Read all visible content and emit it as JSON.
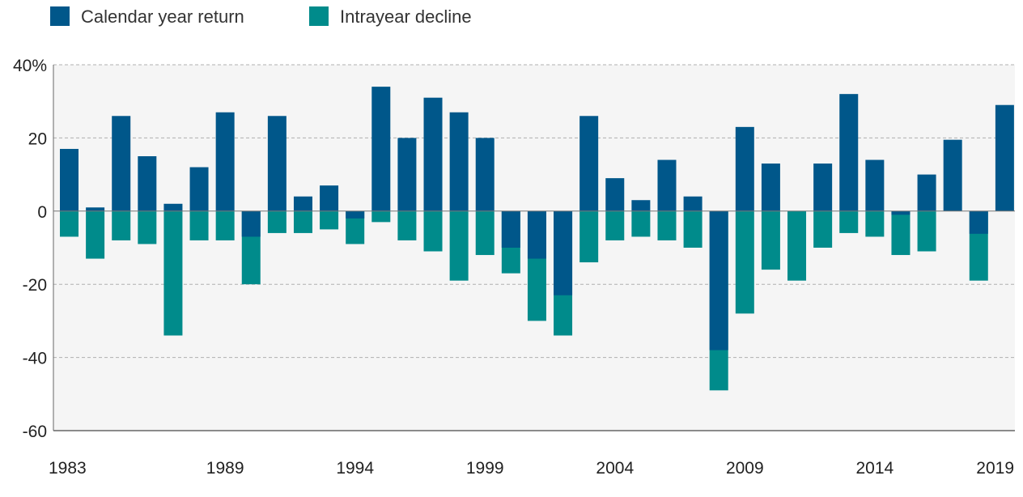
{
  "chart_data": {
    "type": "bar",
    "title": "",
    "xlabel": "",
    "ylabel": "",
    "ylim": [
      -60,
      40
    ],
    "y_ticks": [
      40,
      20,
      0,
      -20,
      -40,
      -60
    ],
    "y_tick_labels": [
      "40%",
      "20",
      "0",
      "-20",
      "-40",
      "-60"
    ],
    "x_tick_labels": [
      "1983",
      "1989",
      "1994",
      "1999",
      "2004",
      "2009",
      "2014",
      "2019"
    ],
    "legend_placement": "top-left",
    "grid": true,
    "years": [
      1983,
      1984,
      1985,
      1986,
      1987,
      1988,
      1989,
      1990,
      1991,
      1992,
      1993,
      1994,
      1995,
      1996,
      1997,
      1998,
      1999,
      2000,
      2001,
      2002,
      2003,
      2004,
      2005,
      2006,
      2007,
      2008,
      2009,
      2010,
      2011,
      2012,
      2013,
      2014,
      2015,
      2016,
      2017,
      2018,
      2019
    ],
    "series": [
      {
        "name": "Calendar year return",
        "color": "#00578a",
        "values": [
          17,
          1,
          26,
          15,
          2,
          12,
          27,
          -7,
          26,
          4,
          7,
          -2,
          34,
          20,
          31,
          27,
          20,
          -10,
          -13,
          -23,
          26,
          9,
          3,
          14,
          4,
          -38,
          23,
          13,
          0,
          13,
          32,
          14,
          -1,
          10,
          19.5,
          -6.2,
          29
        ]
      },
      {
        "name": "Intrayear decline",
        "color": "#008b8b",
        "values": [
          -7,
          -13,
          -8,
          -9,
          -34,
          -8,
          -8,
          -20,
          -6,
          -6,
          -5,
          -9,
          -3,
          -8,
          -11,
          -19,
          -12,
          -17,
          -30,
          -34,
          -14,
          -8,
          -7,
          -8,
          -10,
          -49,
          -28,
          -16,
          -19,
          -10,
          -6,
          -7,
          -12,
          -11,
          0,
          -19,
          0
        ]
      }
    ]
  }
}
